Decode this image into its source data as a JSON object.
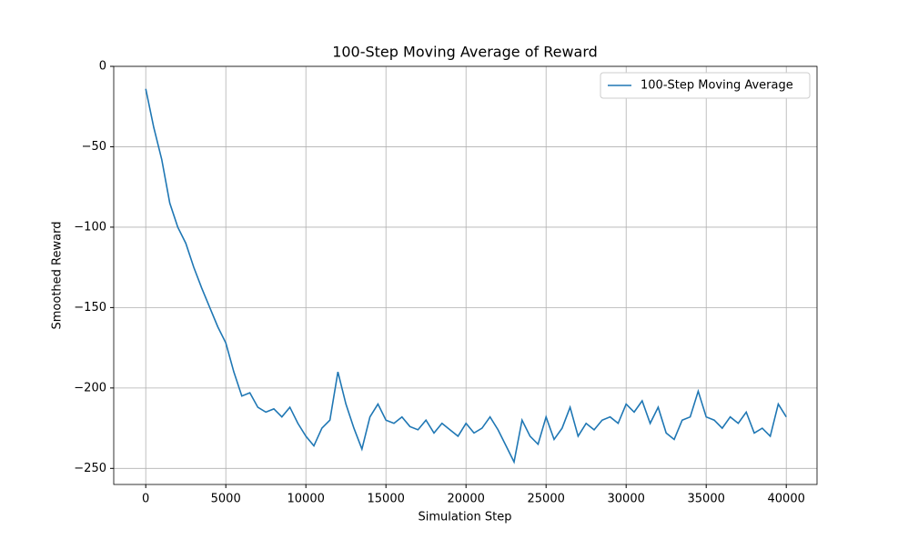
{
  "chart_data": {
    "type": "line",
    "title": "100-Step Moving Average of Reward",
    "x_label": "Simulation Step",
    "y_label": "Smoothed Reward",
    "x": [
      0,
      500,
      1000,
      1500,
      2000,
      2500,
      3000,
      3500,
      4000,
      4500,
      5000,
      5500,
      6000,
      6500,
      7000,
      7500,
      8000,
      8500,
      9000,
      9500,
      10000,
      10500,
      11000,
      11500,
      12000,
      12500,
      13000,
      13500,
      14000,
      14500,
      15000,
      15500,
      16000,
      16500,
      17000,
      17500,
      18000,
      18500,
      19000,
      19500,
      20000,
      20500,
      21000,
      21500,
      22000,
      22500,
      23000,
      23500,
      24000,
      24500,
      25000,
      25500,
      26000,
      26500,
      27000,
      27500,
      28000,
      28500,
      29000,
      29500,
      30000,
      30500,
      31000,
      31500,
      32000,
      32500,
      33000,
      33500,
      34000,
      34500,
      35000,
      35500,
      36000,
      36500,
      37000,
      37500,
      38000,
      38500,
      39000,
      39500,
      40000
    ],
    "series": [
      {
        "name": "100-Step Moving Average",
        "color": "#1f77b4",
        "values": [
          -14,
          -38,
          -58,
          -85,
          -100,
          -110,
          -125,
          -138,
          -150,
          -162,
          -172,
          -190,
          -205,
          -203,
          -212,
          -215,
          -213,
          -218,
          -212,
          -222,
          -230,
          -236,
          -225,
          -220,
          -190,
          -210,
          -225,
          -238,
          -218,
          -210,
          -220,
          -222,
          -218,
          -224,
          -226,
          -220,
          -228,
          -222,
          -226,
          -230,
          -222,
          -228,
          -225,
          -218,
          -226,
          -236,
          -246,
          -220,
          -230,
          -235,
          -218,
          -232,
          -225,
          -212,
          -230,
          -222,
          -226,
          -220,
          -218,
          -222,
          -210,
          -215,
          -208,
          -222,
          -212,
          -228,
          -232,
          -220,
          -218,
          -202,
          -218,
          -220,
          -225,
          -218,
          -222,
          -215,
          -228,
          -225,
          -230,
          -210,
          -218
        ]
      }
    ],
    "xlim": [
      -2000,
      41920
    ],
    "ylim": [
      -260,
      0
    ],
    "xticks": [
      0,
      5000,
      10000,
      15000,
      20000,
      25000,
      30000,
      35000,
      40000
    ],
    "yticks": [
      {
        "value": -250,
        "label": "−250"
      },
      {
        "value": -200,
        "label": "−200"
      },
      {
        "value": -150,
        "label": "−150"
      },
      {
        "value": -100,
        "label": "−100"
      },
      {
        "value": -50,
        "label": "−50"
      },
      0
    ],
    "grid": true,
    "legend": "upper right"
  }
}
